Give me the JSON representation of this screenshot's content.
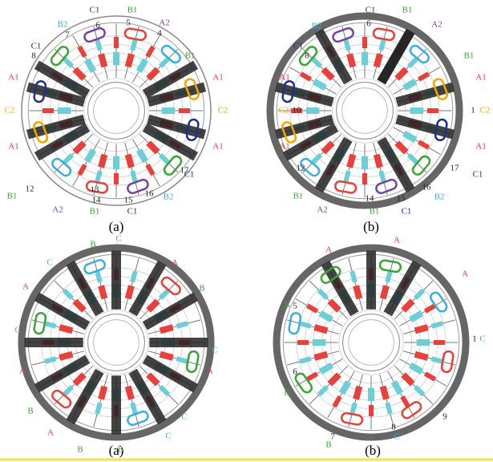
{
  "panels": [
    {
      "caption": "(a)",
      "labels": [
        {
          "text": "C1",
          "color": "#1f2f8c"
        },
        {
          "text": "B1",
          "color": "#3aa535"
        },
        {
          "text": "A2",
          "color": "#7b3fa0"
        },
        {
          "text": "B2",
          "color": "#3aaee0"
        },
        {
          "text": "C1",
          "color": "#1f2f8c"
        },
        {
          "text": "B1",
          "color": "#3aa535"
        },
        {
          "text": "A1",
          "color": "#e8413c"
        },
        {
          "text": "A1",
          "color": "#e8413c"
        },
        {
          "text": "C2",
          "color": "#f0a800"
        },
        {
          "text": "C2",
          "color": "#f0a800"
        },
        {
          "text": "A1",
          "color": "#e8413c"
        },
        {
          "text": "A1",
          "color": "#e8413c"
        },
        {
          "text": "B1",
          "color": "#3aa535"
        },
        {
          "text": "C1",
          "color": "#1f2f8c"
        },
        {
          "text": "B2",
          "color": "#3aaee0"
        },
        {
          "text": "A2",
          "color": "#7b3fa0"
        },
        {
          "text": "B1",
          "color": "#3aa535"
        },
        {
          "text": "C1",
          "color": "#1f2f8c"
        },
        {
          "text": "4",
          "color": "#222"
        },
        {
          "text": "5",
          "color": "#222"
        },
        {
          "text": "6",
          "color": "#222"
        },
        {
          "text": "7",
          "color": "#222"
        },
        {
          "text": "8",
          "color": "#222"
        },
        {
          "text": "12",
          "color": "#222"
        },
        {
          "text": "13",
          "color": "#222"
        },
        {
          "text": "14",
          "color": "#222"
        },
        {
          "text": "15",
          "color": "#222"
        },
        {
          "text": "16",
          "color": "#222"
        },
        {
          "text": "17",
          "color": "#222"
        }
      ]
    },
    {
      "caption": "(b)",
      "labels": [
        {
          "text": "C1",
          "color": "#1f2f8c"
        },
        {
          "text": "B1",
          "color": "#3aa535"
        },
        {
          "text": "A2",
          "color": "#7b3fa0"
        },
        {
          "text": "B2",
          "color": "#3aaee0"
        },
        {
          "text": "C1",
          "color": "#1f2f8c"
        },
        {
          "text": "B1",
          "color": "#3aa535"
        },
        {
          "text": "A1",
          "color": "#e8413c"
        },
        {
          "text": "A1",
          "color": "#e8413c"
        },
        {
          "text": "C2",
          "color": "#f0a800"
        },
        {
          "text": "C2",
          "color": "#f0a800"
        },
        {
          "text": "A1",
          "color": "#e8413c"
        },
        {
          "text": "A1",
          "color": "#e8413c"
        },
        {
          "text": "B1",
          "color": "#3aa535"
        },
        {
          "text": "C1",
          "color": "#1f2f8c"
        },
        {
          "text": "B2",
          "color": "#3aaee0"
        },
        {
          "text": "A2",
          "color": "#7b3fa0"
        },
        {
          "text": "B1",
          "color": "#3aa535"
        },
        {
          "text": "C1",
          "color": "#1f2f8c"
        },
        {
          "text": "6",
          "color": "#222"
        },
        {
          "text": "7",
          "color": "#222"
        },
        {
          "text": "8",
          "color": "#222"
        },
        {
          "text": "10",
          "color": "#222"
        },
        {
          "text": "1",
          "color": "#222"
        },
        {
          "text": "12",
          "color": "#222"
        },
        {
          "text": "14",
          "color": "#222"
        },
        {
          "text": "15",
          "color": "#222"
        },
        {
          "text": "16",
          "color": "#222"
        },
        {
          "text": "17",
          "color": "#222"
        }
      ]
    },
    {
      "caption": "(a)",
      "labels": [
        {
          "text": "B",
          "color": "#3aa535"
        },
        {
          "text": "C",
          "color": "#3aaee0"
        },
        {
          "text": "C",
          "color": "#3aaee0"
        },
        {
          "text": "A",
          "color": "#e8413c"
        },
        {
          "text": "A",
          "color": "#e8413c"
        },
        {
          "text": "B",
          "color": "#3aa535"
        },
        {
          "text": "C",
          "color": "#3aaee0"
        },
        {
          "text": "C",
          "color": "#3aaee0"
        },
        {
          "text": "A",
          "color": "#e8413c"
        },
        {
          "text": "A",
          "color": "#e8413c"
        },
        {
          "text": "B",
          "color": "#3aa535"
        },
        {
          "text": "B",
          "color": "#3aa535"
        },
        {
          "text": "A",
          "color": "#e8413c"
        },
        {
          "text": "C",
          "color": "#3aaee0"
        },
        {
          "text": "B",
          "color": "#3aa535"
        },
        {
          "text": "C",
          "color": "#3aaee0"
        }
      ]
    },
    {
      "caption": "(b)",
      "labels": [
        {
          "text": "A",
          "color": "#e8413c"
        },
        {
          "text": "A",
          "color": "#e8413c"
        },
        {
          "text": "A",
          "color": "#e8413c"
        },
        {
          "text": "B",
          "color": "#3aa535"
        },
        {
          "text": "C",
          "color": "#3aaee0"
        },
        {
          "text": "B",
          "color": "#3aa535"
        },
        {
          "text": "B",
          "color": "#3aa535"
        },
        {
          "text": "C",
          "color": "#3aaee0"
        },
        {
          "text": "5",
          "color": "#222"
        },
        {
          "text": "6",
          "color": "#222"
        },
        {
          "text": "7",
          "color": "#222"
        },
        {
          "text": "8",
          "color": "#222"
        },
        {
          "text": "9",
          "color": "#222"
        },
        {
          "text": "1",
          "color": "#222"
        }
      ]
    }
  ]
}
